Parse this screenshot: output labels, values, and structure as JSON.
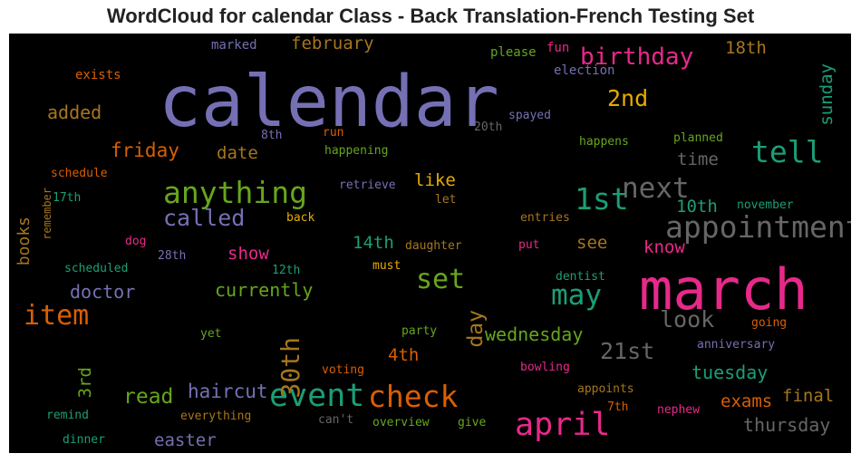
{
  "chart_data": {
    "type": "wordcloud",
    "title": "WordCloud for calendar Class - Back Translation-French Testing Set",
    "background": "#000000",
    "palette": [
      "#7570b3",
      "#e7298a",
      "#1b9e77",
      "#66a61e",
      "#d95f02",
      "#e6ab02",
      "#a6761d",
      "#666666"
    ],
    "words": [
      {
        "text": "calendar",
        "color": "#7570b3",
        "weight": 1.0
      },
      {
        "text": "march",
        "color": "#e7298a",
        "weight": 0.8
      },
      {
        "text": "event",
        "color": "#1b9e77",
        "weight": 0.45
      },
      {
        "text": "april",
        "color": "#e7298a",
        "weight": 0.45
      },
      {
        "text": "anything",
        "color": "#66a61e",
        "weight": 0.42
      },
      {
        "text": "tell",
        "color": "#1b9e77",
        "weight": 0.42
      },
      {
        "text": "appointment",
        "color": "#666666",
        "weight": 0.42
      },
      {
        "text": "next",
        "color": "#666666",
        "weight": 0.4
      },
      {
        "text": "1st",
        "color": "#1b9e77",
        "weight": 0.42
      },
      {
        "text": "check",
        "color": "#d95f02",
        "weight": 0.42
      },
      {
        "text": "may",
        "color": "#1b9e77",
        "weight": 0.4
      },
      {
        "text": "item",
        "color": "#d95f02",
        "weight": 0.38
      },
      {
        "text": "set",
        "color": "#66a61e",
        "weight": 0.38
      },
      {
        "text": "30th",
        "color": "#a6761d",
        "weight": 0.36
      },
      {
        "text": "birthday",
        "color": "#e7298a",
        "weight": 0.33
      },
      {
        "text": "called",
        "color": "#7570b3",
        "weight": 0.32
      },
      {
        "text": "look",
        "color": "#666666",
        "weight": 0.32
      },
      {
        "text": "21st",
        "color": "#666666",
        "weight": 0.32
      },
      {
        "text": "2nd",
        "color": "#e6ab02",
        "weight": 0.32
      },
      {
        "text": "read",
        "color": "#66a61e",
        "weight": 0.3
      },
      {
        "text": "day",
        "color": "#a6761d",
        "weight": 0.29
      },
      {
        "text": "friday",
        "color": "#d95f02",
        "weight": 0.27
      },
      {
        "text": "haircut",
        "color": "#7570b3",
        "weight": 0.27
      },
      {
        "text": "wednesday",
        "color": "#66a61e",
        "weight": 0.26
      },
      {
        "text": "tuesday",
        "color": "#1b9e77",
        "weight": 0.26
      },
      {
        "text": "thursday",
        "color": "#666666",
        "weight": 0.26
      },
      {
        "text": "currently",
        "color": "#66a61e",
        "weight": 0.26
      },
      {
        "text": "doctor",
        "color": "#7570b3",
        "weight": 0.26
      },
      {
        "text": "added",
        "color": "#a6761d",
        "weight": 0.25
      },
      {
        "text": "sunday",
        "color": "#1b9e77",
        "weight": 0.24
      },
      {
        "text": "easter",
        "color": "#7570b3",
        "weight": 0.24
      },
      {
        "text": "exams",
        "color": "#d95f02",
        "weight": 0.24
      },
      {
        "text": "final",
        "color": "#a6761d",
        "weight": 0.24
      },
      {
        "text": "date",
        "color": "#a6761d",
        "weight": 0.24
      },
      {
        "text": "3rd",
        "color": "#66a61e",
        "weight": 0.24
      },
      {
        "text": "february",
        "color": "#a6761d",
        "weight": 0.24
      },
      {
        "text": "time",
        "color": "#666666",
        "weight": 0.24
      },
      {
        "text": "10th",
        "color": "#1b9e77",
        "weight": 0.24
      },
      {
        "text": "18th",
        "color": "#a6761d",
        "weight": 0.24
      },
      {
        "text": "like",
        "color": "#e6ab02",
        "weight": 0.24
      },
      {
        "text": "show",
        "color": "#e7298a",
        "weight": 0.24
      },
      {
        "text": "14th",
        "color": "#1b9e77",
        "weight": 0.24
      },
      {
        "text": "see",
        "color": "#a6761d",
        "weight": 0.24
      },
      {
        "text": "know",
        "color": "#e7298a",
        "weight": 0.24
      },
      {
        "text": "4th",
        "color": "#d95f02",
        "weight": 0.24
      },
      {
        "text": "books",
        "color": "#a6761d",
        "weight": 0.23
      },
      {
        "text": "marked",
        "color": "#7570b3",
        "weight": 0.18
      },
      {
        "text": "exists",
        "color": "#d95f02",
        "weight": 0.18
      },
      {
        "text": "please",
        "color": "#66a61e",
        "weight": 0.18
      },
      {
        "text": "fun",
        "color": "#e7298a",
        "weight": 0.18
      },
      {
        "text": "election",
        "color": "#7570b3",
        "weight": 0.18
      },
      {
        "text": "spayed",
        "color": "#7570b3",
        "weight": 0.17
      },
      {
        "text": "20th",
        "color": "#666666",
        "weight": 0.17
      },
      {
        "text": "8th",
        "color": "#7570b3",
        "weight": 0.17
      },
      {
        "text": "run",
        "color": "#d95f02",
        "weight": 0.17
      },
      {
        "text": "happens",
        "color": "#66a61e",
        "weight": 0.17
      },
      {
        "text": "planned",
        "color": "#66a61e",
        "weight": 0.17
      },
      {
        "text": "happening",
        "color": "#66a61e",
        "weight": 0.17
      },
      {
        "text": "schedule",
        "color": "#d95f02",
        "weight": 0.17
      },
      {
        "text": "retrieve",
        "color": "#7570b3",
        "weight": 0.17
      },
      {
        "text": "17th",
        "color": "#1b9e77",
        "weight": 0.17
      },
      {
        "text": "let",
        "color": "#a6761d",
        "weight": 0.17
      },
      {
        "text": "november",
        "color": "#1b9e77",
        "weight": 0.17
      },
      {
        "text": "back",
        "color": "#e6ab02",
        "weight": 0.17
      },
      {
        "text": "entries",
        "color": "#a6761d",
        "weight": 0.17
      },
      {
        "text": "remember",
        "color": "#a6761d",
        "weight": 0.15
      },
      {
        "text": "dog",
        "color": "#e7298a",
        "weight": 0.17
      },
      {
        "text": "daughter",
        "color": "#a6761d",
        "weight": 0.17
      },
      {
        "text": "put",
        "color": "#e7298a",
        "weight": 0.17
      },
      {
        "text": "28th",
        "color": "#7570b3",
        "weight": 0.17
      },
      {
        "text": "scheduled",
        "color": "#1b9e77",
        "weight": 0.17
      },
      {
        "text": "12th",
        "color": "#1b9e77",
        "weight": 0.17
      },
      {
        "text": "must",
        "color": "#e6ab02",
        "weight": 0.17
      },
      {
        "text": "dentist",
        "color": "#1b9e77",
        "weight": 0.17
      },
      {
        "text": "going",
        "color": "#d95f02",
        "weight": 0.17
      },
      {
        "text": "yet",
        "color": "#66a61e",
        "weight": 0.17
      },
      {
        "text": "party",
        "color": "#66a61e",
        "weight": 0.17
      },
      {
        "text": "anniversary",
        "color": "#7570b3",
        "weight": 0.17
      },
      {
        "text": "voting",
        "color": "#d95f02",
        "weight": 0.17
      },
      {
        "text": "bowling",
        "color": "#e7298a",
        "weight": 0.17
      },
      {
        "text": "appoints",
        "color": "#a6761d",
        "weight": 0.17
      },
      {
        "text": "remind",
        "color": "#1b9e77",
        "weight": 0.17
      },
      {
        "text": "7th",
        "color": "#d95f02",
        "weight": 0.17
      },
      {
        "text": "nephew",
        "color": "#e7298a",
        "weight": 0.17
      },
      {
        "text": "everything",
        "color": "#a6761d",
        "weight": 0.17
      },
      {
        "text": "can't",
        "color": "#666666",
        "weight": 0.17
      },
      {
        "text": "overview",
        "color": "#66a61e",
        "weight": 0.17
      },
      {
        "text": "give",
        "color": "#66a61e",
        "weight": 0.17
      },
      {
        "text": "dinner",
        "color": "#1b9e77",
        "weight": 0.17
      }
    ]
  }
}
